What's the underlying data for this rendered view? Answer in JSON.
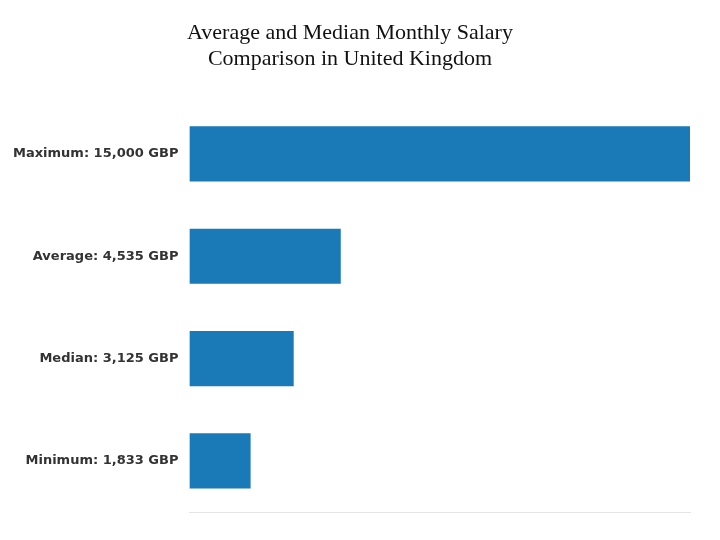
{
  "chart_data": {
    "type": "bar",
    "orientation": "horizontal",
    "title": "Average and Median Monthly Salary\nComparison in United Kingdom",
    "categories": [
      "Maximum: 15,000 GBP",
      "Average: 4,535 GBP",
      "Median: 3,125 GBP",
      "Minimum: 1,833 GBP"
    ],
    "values": [
      15000,
      4535,
      3125,
      1833
    ],
    "color": "#1a7ab8",
    "xlim": [
      0,
      15000
    ],
    "grid": false,
    "tick_labels": "y"
  }
}
